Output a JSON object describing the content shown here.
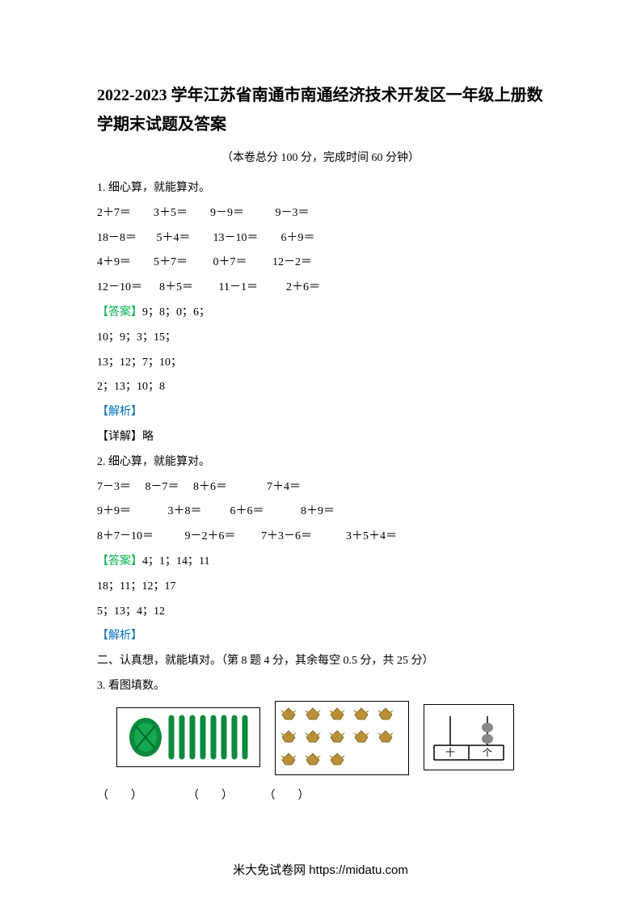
{
  "title": "2022-2023 学年江苏省南通市南通经济技术开发区一年级上册数学期末试题及答案",
  "subtitle": "（本卷总分 100 分，完成时间 60 分钟）",
  "q1": {
    "heading": "1. 细心算，就能算对。",
    "rows": [
      "2＋7＝        3＋5＝        9－9＝           9－3＝",
      "18－8＝       5＋4＝        13－10＝        6＋9＝",
      "4＋9＝        5＋7＝         0＋7＝         12－2＝",
      "12－10＝      8＋5＝         11－1＝          2＋6＝"
    ],
    "answer_label": "【答案】",
    "answer_lines": [
      "9；8；0；6；",
      "10；9；3；15；",
      "13；12；7；10；",
      "2；13；10；8"
    ],
    "analysis_label": "【解析】",
    "detail": "【详解】略"
  },
  "q2": {
    "heading": "2. 细心算，就能算对。",
    "rows": [
      "7－3＝     8－7＝     8＋6＝              7＋4＝",
      "9＋9＝             3＋8＝          6＋6＝             8＋9＝",
      "8＋7－10＝           9－2＋6＝         7＋3－6＝            3＋5＋4＝"
    ],
    "answer_label": "【答案】",
    "answer_lines": [
      "4；1；14；11",
      "18；11；12；17",
      "5；13；4；12"
    ],
    "analysis_label": "【解析】"
  },
  "section2": {
    "heading": "二、认真想，就能填对。（第 8 题 4 分，其余每空 0.5 分，共 25 分）",
    "q3_heading": "3. 看图填数。",
    "blanks": "（        ）                （        ）           （        ）"
  },
  "images": {
    "box1": {
      "bundle_color": "#0b8a3e",
      "stick_color": "#0b8a3e"
    },
    "box2": {
      "bird_color": "#b89038",
      "rows": 3,
      "cols": 5,
      "missing": [
        [
          2,
          3
        ],
        [
          2,
          4
        ]
      ]
    },
    "box3": {
      "line_color": "#000000",
      "bead_color": "#888888",
      "label1": "十",
      "label2": "个"
    }
  },
  "footer": "米大免试卷网 https://midatu.com",
  "colors": {
    "text": "#000000",
    "answer": "#00b050",
    "analysis": "#0070c0",
    "background": "#ffffff"
  }
}
